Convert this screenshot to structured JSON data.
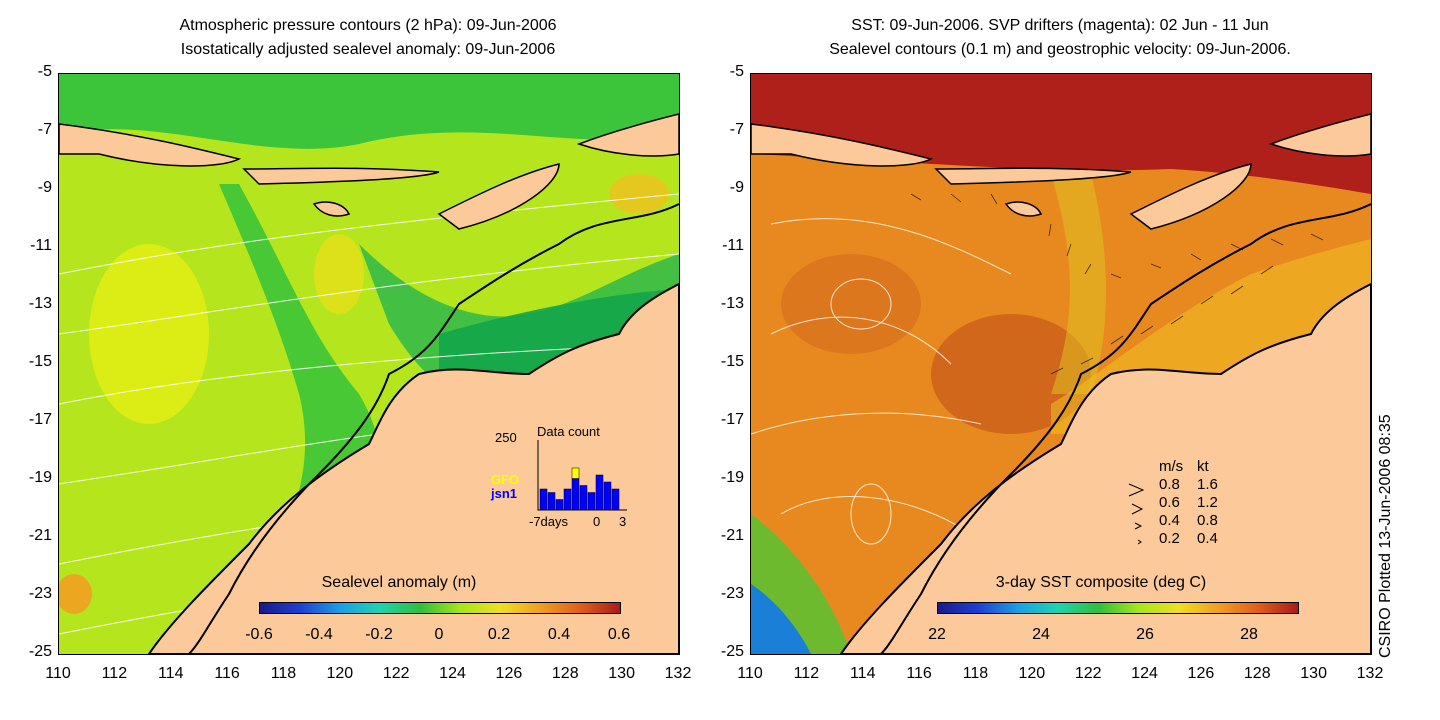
{
  "left_panel": {
    "title_line1": "Atmospheric pressure contours (2 hPa): 09-Jun-2006",
    "title_line2": "Isostatically adjusted sealevel anomaly: 09-Jun-2006",
    "colorbar_title": "Sealevel anomaly (m)",
    "colorbar_ticks": [
      "-0.6",
      "-0.4",
      "-0.2",
      "0",
      "0.2",
      "0.4",
      "0.6"
    ],
    "inset": {
      "title": "Data count",
      "ymax": "250",
      "xlabel_left": "-7days",
      "xlabel_mid": "0",
      "xlabel_right": "3",
      "sat1": "GFO",
      "sat2": "jsn1",
      "sat1_color": "#ffff00",
      "sat2_color": "#0000ff",
      "bars_jsn1": [
        0.3,
        0.25,
        0.15,
        0.3,
        0.45,
        0.35,
        0.25,
        0.5,
        0.4,
        0.3
      ],
      "bars_gfo": [
        0.0,
        0.12,
        0.0,
        0.0,
        0.6,
        0.0,
        0.0,
        0.3,
        0.0,
        0.0
      ]
    }
  },
  "right_panel": {
    "title_line1": "SST: 09-Jun-2006. SVP drifters (magenta): 02 Jun - 11 Jun",
    "title_line2": "Sealevel contours (0.1 m) and geostrophic velocity: 09-Jun-2006.",
    "colorbar_title": "3-day SST composite (deg C)",
    "colorbar_ticks": [
      "22",
      "24",
      "26",
      "28"
    ],
    "legend": {
      "header_ms": "m/s",
      "header_kt": "kt",
      "rows": [
        {
          "ms": "0.8",
          "kt": "1.6"
        },
        {
          "ms": "0.6",
          "kt": "1.2"
        },
        {
          "ms": "0.4",
          "kt": "0.8"
        },
        {
          "ms": "0.2",
          "kt": "0.4"
        }
      ]
    }
  },
  "axes": {
    "y_ticks": [
      "-5",
      "-7",
      "-9",
      "-11",
      "-13",
      "-15",
      "-17",
      "-19",
      "-21",
      "-23",
      "-25"
    ],
    "x_ticks": [
      "110",
      "112",
      "114",
      "116",
      "118",
      "120",
      "122",
      "124",
      "126",
      "128",
      "130",
      "132"
    ],
    "lon_range": [
      110,
      132
    ],
    "lat_range": [
      -25,
      -5
    ]
  },
  "credit": "CSIRO Plotted 13-Jun-2006 08:35",
  "colors": {
    "land": "#fbc99a",
    "sla_green": "#2fbf3a",
    "sla_lightgreen": "#a6e619",
    "sst_orange": "#e8891f",
    "sst_red": "#b0201a"
  }
}
